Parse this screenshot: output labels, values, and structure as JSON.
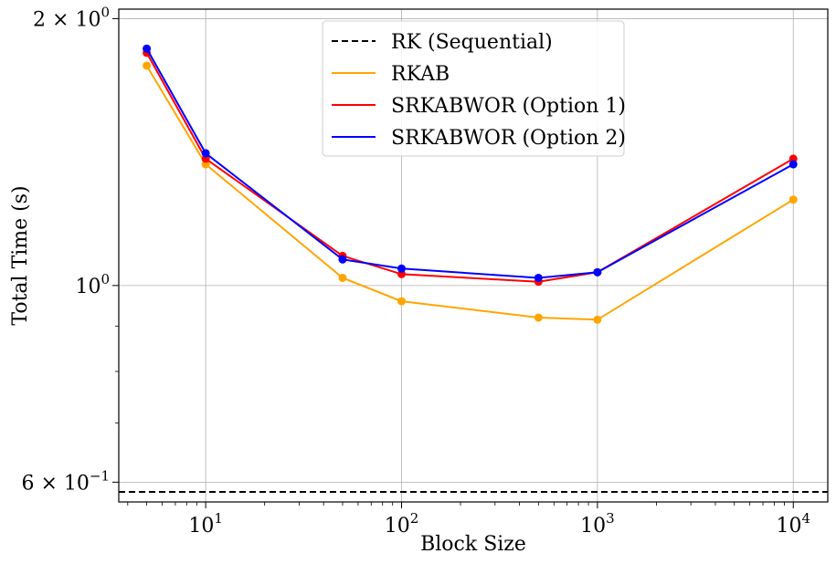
{
  "chart_data": {
    "type": "line",
    "xscale": "log",
    "yscale": "log",
    "xlabel": "Block Size",
    "ylabel": "Total Time (s)",
    "xlim": [
      3.6,
      15000
    ],
    "ylim": [
      0.57,
      2.05
    ],
    "grid": true,
    "legend_position": "top-center",
    "x_ticks": [
      {
        "value": 10,
        "base": "10",
        "exp": "1"
      },
      {
        "value": 100,
        "base": "10",
        "exp": "2"
      },
      {
        "value": 1000,
        "base": "10",
        "exp": "3"
      },
      {
        "value": 10000,
        "base": "10",
        "exp": "4"
      }
    ],
    "y_ticks": [
      {
        "value": 2.0,
        "mant": "2 × 10",
        "exp": "0"
      },
      {
        "value": 1.0,
        "mant": "10",
        "exp": "0"
      },
      {
        "value": 0.6,
        "mant": "6 × 10",
        "exp": "−1"
      }
    ],
    "x": [
      5,
      10,
      50,
      100,
      500,
      1000,
      10000
    ],
    "series": [
      {
        "name": "RK (Sequential)",
        "color": "#000000",
        "style": "dashed",
        "markers": false,
        "y_constant": 0.585
      },
      {
        "name": "RKAB",
        "color": "#ffa500",
        "style": "solid",
        "markers": true,
        "values": [
          1.77,
          1.37,
          1.02,
          0.96,
          0.92,
          0.915,
          1.25
        ]
      },
      {
        "name": "SRKABWOR (Option 1)",
        "color": "#ff0000",
        "style": "solid",
        "markers": true,
        "values": [
          1.83,
          1.39,
          1.08,
          1.03,
          1.01,
          1.035,
          1.39
        ]
      },
      {
        "name": "SRKABWOR (Option 2)",
        "color": "#0000ff",
        "style": "solid",
        "markers": true,
        "values": [
          1.85,
          1.41,
          1.07,
          1.045,
          1.02,
          1.035,
          1.37
        ]
      }
    ]
  }
}
